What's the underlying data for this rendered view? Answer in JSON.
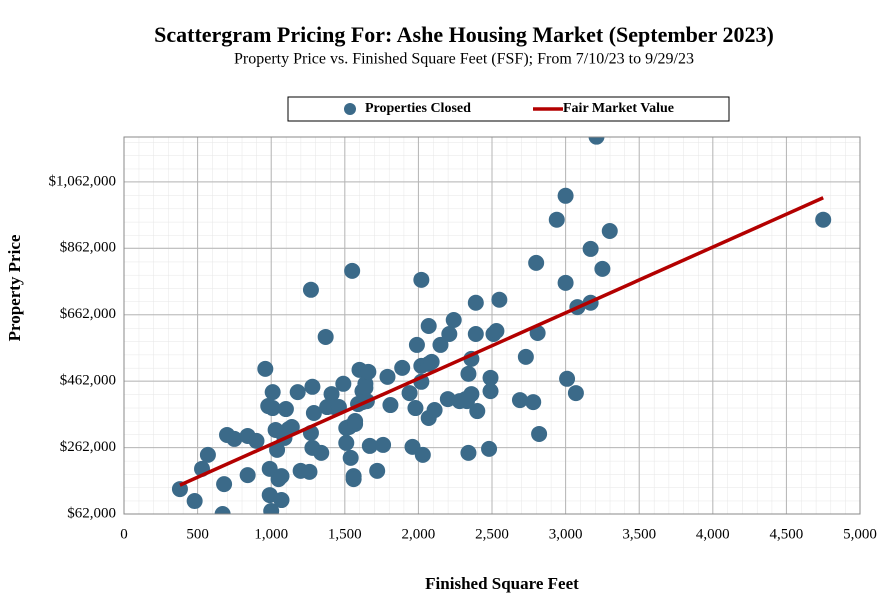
{
  "chart_data": {
    "type": "scatter",
    "title": "Scattergram Pricing For: Ashe Housing Market (September 2023)",
    "subtitle": "Property Price vs. Finished Square Feet (FSF); From 7/10/23 to 9/29/23",
    "x_label": "Finished Square Feet",
    "y_label": "Property Price",
    "xlim": [
      0,
      5000
    ],
    "ylim": [
      62000,
      1197000
    ],
    "xticks": [
      0,
      500,
      {
        "value": 1000,
        "label": "1,000"
      },
      {
        "value": 1500,
        "label": "1,500"
      },
      {
        "value": 2000,
        "label": "2,000"
      },
      {
        "value": 2500,
        "label": "2,500"
      },
      {
        "value": 3000,
        "label": "3,000"
      },
      {
        "value": 3500,
        "label": "3,500"
      },
      {
        "value": 4000,
        "label": "4,000"
      },
      {
        "value": 4500,
        "label": "4,500"
      },
      {
        "value": 5000,
        "label": "5,000"
      }
    ],
    "yticks": [
      {
        "value": 62000,
        "label": "$62,000"
      },
      {
        "value": 262000,
        "label": "$262,000"
      },
      {
        "value": 462000,
        "label": "$462,000"
      },
      {
        "value": 662000,
        "label": "$662,000"
      },
      {
        "value": 862000,
        "label": "$862,000"
      },
      {
        "value": 1062000,
        "label": "$1,062,000"
      }
    ],
    "grid": true,
    "legend": "top",
    "series": [
      {
        "name": "Properties Closed",
        "color": "#3b6a89",
        "type": "scatter",
        "x": [
          380,
          480,
          530,
          570,
          680,
          670,
          700,
          750,
          840,
          840,
          900,
          960,
          980,
          990,
          1000,
          990,
          1010,
          1010,
          1030,
          1040,
          1050,
          1070,
          1070,
          1090,
          1100,
          1120,
          1140,
          1180,
          1200,
          1260,
          1270,
          1270,
          1280,
          1280,
          1290,
          1340,
          1370,
          1380,
          1410,
          1430,
          1460,
          1490,
          1510,
          1510,
          1530,
          1540,
          1550,
          1560,
          1560,
          1570,
          1570,
          1590,
          1600,
          1620,
          1620,
          1640,
          1640,
          1650,
          1660,
          1670,
          1720,
          1760,
          1790,
          1810,
          1890,
          1940,
          1960,
          1980,
          1990,
          2020,
          2020,
          2020,
          2030,
          2070,
          2070,
          2070,
          2090,
          2110,
          2150,
          2200,
          2210,
          2240,
          2280,
          2320,
          2330,
          2340,
          2340,
          2360,
          2360,
          2400,
          2390,
          2390,
          2480,
          2490,
          2490,
          2510,
          2530,
          2550,
          2690,
          2730,
          2780,
          2800,
          2810,
          2820,
          2940,
          3000,
          3000,
          3010,
          3070,
          3080,
          3170,
          3170,
          3250,
          3300,
          4750,
          3210
        ],
        "values": [
          137000,
          101000,
          198000,
          240000,
          152000,
          62000,
          300000,
          288000,
          179000,
          297000,
          282000,
          499000,
          387000,
          119000,
          71000,
          198000,
          429000,
          381000,
          315000,
          255000,
          167000,
          104000,
          176000,
          291000,
          378000,
          318000,
          324000,
          429000,
          192000,
          189000,
          306000,
          737000,
          261000,
          445000,
          366000,
          246000,
          595000,
          384000,
          423000,
          384000,
          384000,
          454000,
          276000,
          321000,
          324000,
          231000,
          794000,
          176000,
          167000,
          333000,
          342000,
          393000,
          496000,
          432000,
          399000,
          454000,
          442000,
          402000,
          490000,
          267000,
          192000,
          270000,
          475000,
          390000,
          502000,
          426000,
          264000,
          381000,
          571000,
          767000,
          508000,
          460000,
          240000,
          514000,
          351000,
          628000,
          520000,
          375000,
          571000,
          408000,
          604000,
          646000,
          402000,
          408000,
          402000,
          246000,
          484000,
          529000,
          423000,
          372000,
          604000,
          698000,
          258000,
          472000,
          432000,
          604000,
          613000,
          707000,
          405000,
          535000,
          399000,
          818000,
          607000,
          303000,
          948000,
          1020000,
          758000,
          469000,
          426000,
          685000,
          698000,
          860000,
          800000,
          914000,
          948000,
          1198000
        ]
      },
      {
        "name": "Fair Market Value",
        "color": "#b30000",
        "type": "line",
        "x": [
          380,
          4750
        ],
        "values": [
          149000,
          1014000
        ]
      }
    ]
  }
}
